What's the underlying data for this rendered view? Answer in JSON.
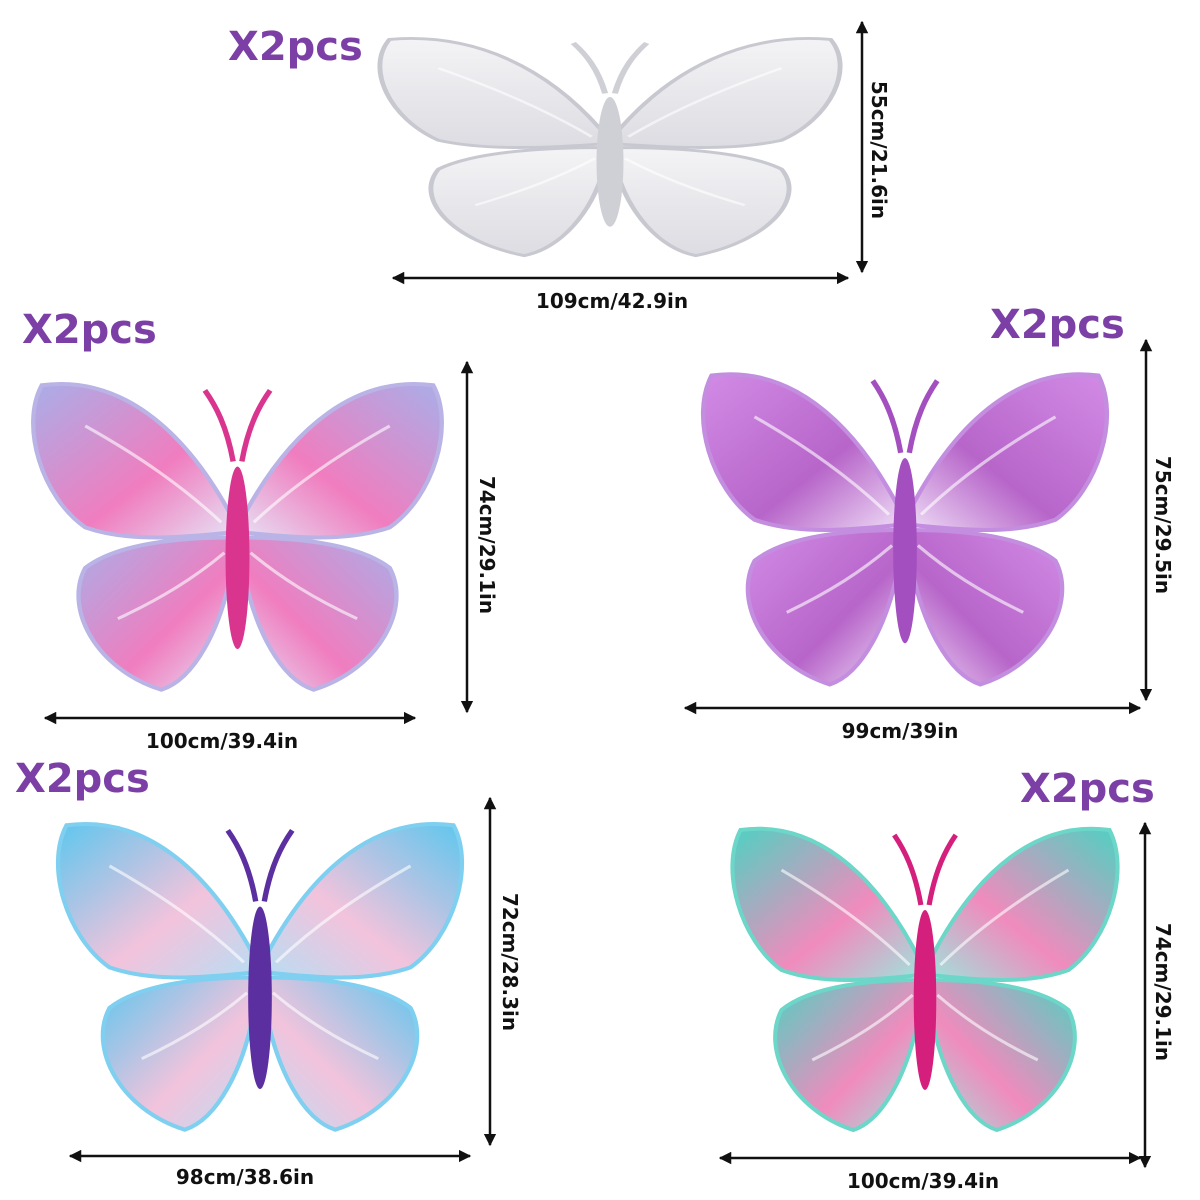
{
  "items": [
    {
      "quantity": "X2pcs",
      "width": "109cm/42.9in",
      "height": "55cm/21.6in"
    },
    {
      "quantity": "X2pcs",
      "width": "100cm/39.4in",
      "height": "74cm/29.1in"
    },
    {
      "quantity": "X2pcs",
      "width": "99cm/39in",
      "height": "75cm/29.5in"
    },
    {
      "quantity": "X2pcs",
      "width": "98cm/38.6in",
      "height": "72cm/28.3in"
    },
    {
      "quantity": "X2pcs",
      "width": "100cm/39.4in",
      "height": "74cm/29.1in"
    }
  ]
}
